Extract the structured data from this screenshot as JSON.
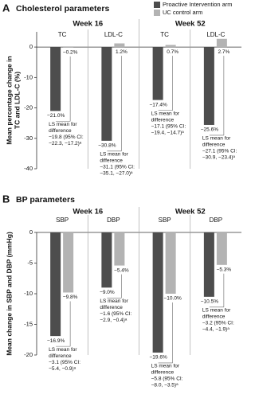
{
  "chart_data": [
    {
      "type": "bar",
      "panel_label": "A",
      "title": "Cholesterol parameters",
      "ylabel": [
        "Mean percentage change in",
        "TC and  LDL-C (%)"
      ],
      "groups": [
        "Week 16",
        "Week 52"
      ],
      "categories": [
        "TC",
        "LDL-C",
        "TC",
        "LDL-C"
      ],
      "series": [
        {
          "name": "Proactive Intervention arm",
          "color": "#4d4d4d",
          "values": [
            -21.0,
            -30.8,
            -17.4,
            -25.6
          ],
          "value_labels": [
            "−21.0%",
            "−30.8%",
            "−17.4%",
            "−25.6%"
          ]
        },
        {
          "name": "UC control arm",
          "color": "#b3b3b3",
          "values": [
            -0.2,
            1.2,
            0.7,
            2.7
          ],
          "value_labels": [
            "−0.2%",
            "1.2%",
            "0.7%",
            "2.7%"
          ]
        }
      ],
      "annotations": [
        [
          "LS mean for",
          "difference",
          "−19.8 (95% CI:",
          "−22.3, −17.2)ᵃ"
        ],
        [
          "LS mean for",
          "difference",
          "−31.1 (95% CI:",
          "−35.1, −27.0)ᵃ"
        ],
        [
          "LS mean for",
          "difference",
          "−17.1 (95% CI:",
          "−19.4, −14.7)ᵃ"
        ],
        [
          "LS mean for",
          "difference",
          "−27.1 (95% CI:",
          "−30.9, −23.4)ᵃ"
        ]
      ],
      "ylim": [
        -40,
        5
      ],
      "yticks": [
        0,
        -10,
        -20,
        -30,
        -40
      ],
      "legend": true
    },
    {
      "type": "bar",
      "panel_label": "B",
      "title": "BP parameters",
      "ylabel": [
        "Mean change in SBP and DBP (mmHg)"
      ],
      "groups": [
        "Week 16",
        "Week 52"
      ],
      "categories": [
        "SBP",
        "DBP",
        "SBP",
        "DBP"
      ],
      "series": [
        {
          "color": "#4d4d4d",
          "values": [
            -16.9,
            -9.0,
            -19.6,
            -10.5
          ],
          "value_labels": [
            "−16.9%",
            "−9.0%",
            "−19.6%",
            "−10.5%"
          ]
        },
        {
          "color": "#b3b3b3",
          "values": [
            -9.8,
            -5.4,
            -10.0,
            -5.3
          ],
          "value_labels": [
            "−9.8%",
            "−5.4%",
            "−10.0%",
            "−5.3%"
          ]
        }
      ],
      "annotations": [
        [
          "LS mean for",
          "difference",
          "−3.1 (95% CI:",
          "−5.4, −0.9)ᵃ"
        ],
        [
          "LS mean for",
          "difference",
          "−1.6 (95% CI:",
          "−2.9, −0.4)ᵃ"
        ],
        [
          "LS mean for",
          "difference",
          "−5.8 (95% CI:",
          "−8.0, −3.5)ᵃ"
        ],
        [
          "LS mean for",
          "difference",
          "−3.2 (95% CI:",
          "−4.4, −1.9)ᵃ"
        ]
      ],
      "ylim": [
        -20,
        0
      ],
      "yticks": [
        0,
        -5,
        -10,
        -15,
        -20
      ],
      "legend": false
    }
  ]
}
